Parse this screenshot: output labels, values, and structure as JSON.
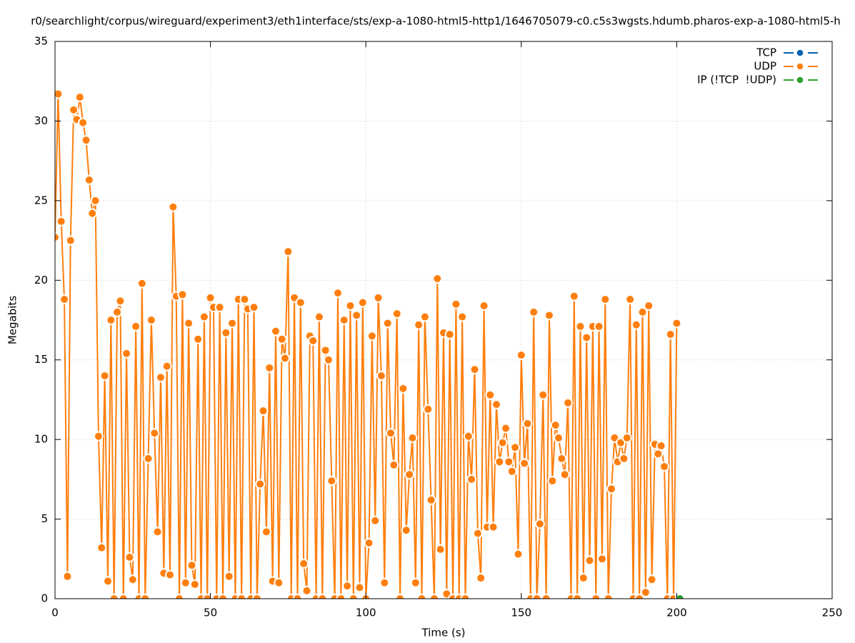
{
  "chart_data": {
    "type": "line",
    "title": "r0/searchlight/corpus/wireguard/experiment3/eth1interface/sts/exp-a-1080-html5-http1/1646705079-c0.c5s3wgsts.hdumb.pharos-exp-a-1080-html5-h",
    "xlabel": "Time (s)",
    "ylabel": "Megabits",
    "xlim": [
      0,
      250
    ],
    "xticks": [
      0,
      50,
      100,
      150,
      200,
      250
    ],
    "ylim": [
      0,
      35
    ],
    "yticks": [
      0,
      5,
      10,
      15,
      20,
      25,
      30,
      35
    ],
    "grid": true,
    "legend": "top-right",
    "series": [
      {
        "name": "TCP",
        "color": "#0060ad",
        "x": [],
        "values": []
      },
      {
        "name": "UDP",
        "color": "#ff7f0e",
        "x": [
          0,
          1,
          2,
          3,
          4,
          5,
          6,
          7,
          8,
          9,
          10,
          11,
          12,
          13,
          14,
          15,
          16,
          17,
          18,
          19,
          20,
          21,
          22,
          23,
          24,
          25,
          26,
          27,
          28,
          29,
          30,
          31,
          32,
          33,
          34,
          35,
          36,
          37,
          38,
          39,
          40,
          41,
          42,
          43,
          44,
          45,
          46,
          47,
          48,
          49,
          50,
          51,
          52,
          53,
          54,
          55,
          56,
          57,
          58,
          59,
          60,
          61,
          62,
          63,
          64,
          65,
          66,
          67,
          68,
          69,
          70,
          71,
          72,
          73,
          74,
          75,
          76,
          77,
          78,
          79,
          80,
          81,
          82,
          83,
          84,
          85,
          86,
          87,
          88,
          89,
          90,
          91,
          92,
          93,
          94,
          95,
          96,
          97,
          98,
          99,
          100,
          101,
          102,
          103,
          104,
          105,
          106,
          107,
          108,
          109,
          110,
          111,
          112,
          113,
          114,
          115,
          116,
          117,
          118,
          119,
          120,
          121,
          122,
          123,
          124,
          125,
          126,
          127,
          128,
          129,
          130,
          131,
          132,
          133,
          134,
          135,
          136,
          137,
          138,
          139,
          140,
          141,
          142,
          143,
          144,
          145,
          146,
          147,
          148,
          149,
          150,
          151,
          152,
          153,
          154,
          155,
          156,
          157,
          158,
          159,
          160,
          161,
          162,
          163,
          164,
          165,
          166,
          167,
          168,
          169,
          170,
          171,
          172,
          173,
          174,
          175,
          176,
          177,
          178,
          179,
          180,
          181,
          182,
          183,
          184,
          185,
          186,
          187,
          188,
          189,
          190,
          191,
          192,
          193,
          194,
          195,
          196,
          197,
          198,
          199,
          200
        ],
        "values": [
          22.7,
          31.7,
          23.7,
          18.8,
          1.4,
          22.5,
          30.7,
          30.1,
          31.5,
          29.9,
          28.8,
          26.3,
          24.2,
          25.0,
          10.2,
          3.2,
          14.0,
          1.1,
          17.5,
          0,
          18.0,
          18.7,
          0,
          15.4,
          2.6,
          1.2,
          17.1,
          0,
          19.8,
          0,
          8.8,
          17.5,
          10.4,
          4.2,
          13.9,
          1.6,
          14.6,
          1.5,
          24.6,
          19.0,
          0,
          19.1,
          1.0,
          17.3,
          2.1,
          0.9,
          16.3,
          0,
          17.7,
          0,
          18.9,
          18.3,
          0,
          18.3,
          0,
          16.7,
          1.4,
          17.3,
          0,
          18.8,
          0,
          18.8,
          18.2,
          0,
          18.3,
          0,
          7.2,
          11.8,
          4.2,
          14.5,
          1.1,
          16.8,
          1.0,
          16.3,
          15.1,
          21.8,
          0,
          18.9,
          0,
          18.6,
          2.2,
          0.5,
          16.5,
          16.2,
          0,
          17.7,
          0,
          15.6,
          15.0,
          7.4,
          0,
          19.2,
          0,
          17.5,
          0.8,
          18.4,
          0,
          17.8,
          0.7,
          18.6,
          0,
          3.5,
          16.5,
          4.9,
          18.9,
          14.0,
          1.0,
          17.3,
          10.4,
          8.4,
          17.9,
          0,
          13.2,
          4.3,
          7.8,
          10.1,
          1.0,
          17.2,
          0,
          17.7,
          11.9,
          6.2,
          0,
          20.1,
          3.1,
          16.7,
          0.3,
          16.6,
          0,
          18.5,
          0,
          17.7,
          0,
          10.2,
          7.5,
          14.4,
          4.1,
          1.3,
          18.4,
          4.5,
          12.8,
          4.5,
          12.2,
          8.6,
          9.8,
          10.7,
          8.6,
          8.0,
          9.5,
          2.8,
          15.3,
          8.5,
          11.0,
          0,
          18.0,
          0,
          4.7,
          12.8,
          0,
          17.8,
          7.4,
          10.9,
          10.1,
          8.8,
          7.8,
          12.3,
          0,
          19.0,
          0,
          17.1,
          1.3,
          16.4,
          2.4,
          17.1,
          0,
          17.1,
          2.5,
          18.8,
          0,
          6.9,
          10.1,
          8.6,
          9.8,
          8.8,
          10.1,
          18.8,
          0,
          17.2,
          0,
          18.0,
          0.4,
          18.4,
          1.2,
          9.7,
          9.1,
          9.6,
          8.3,
          0,
          16.6,
          0,
          17.3
        ]
      },
      {
        "name": "IP (!TCP  !UDP)",
        "color": "#2ca02c",
        "x": [
          201
        ],
        "values": [
          0
        ]
      }
    ]
  }
}
